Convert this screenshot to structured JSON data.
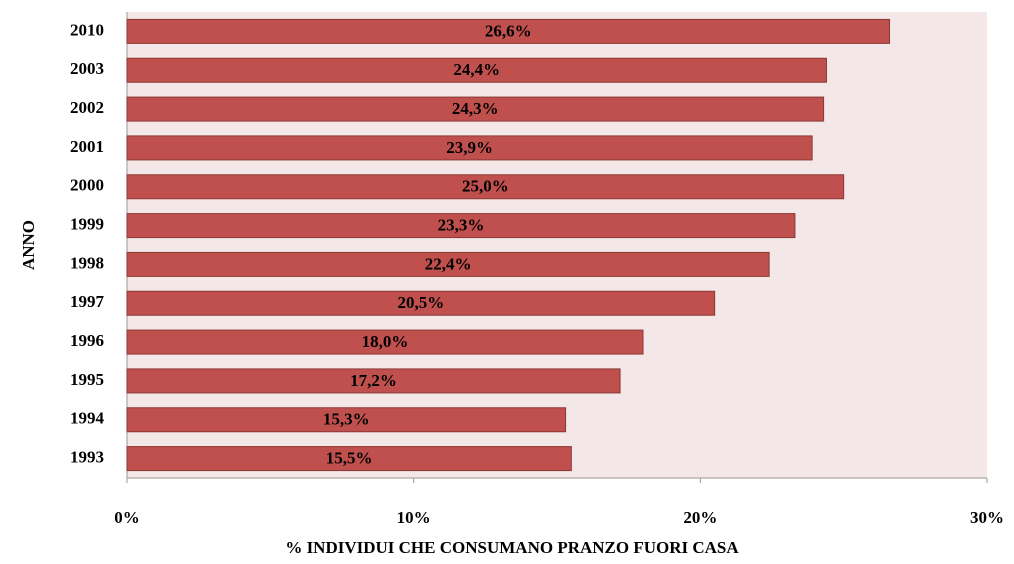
{
  "chart_data": {
    "type": "bar",
    "orientation": "horizontal",
    "categories": [
      "2010",
      "2003",
      "2002",
      "2001",
      "2000",
      "1999",
      "1998",
      "1997",
      "1996",
      "1995",
      "1994",
      "1993"
    ],
    "values": [
      26.6,
      24.4,
      24.3,
      23.9,
      25.0,
      23.3,
      22.4,
      20.5,
      18.0,
      17.2,
      15.3,
      15.5
    ],
    "value_labels": [
      "26,6%",
      "24,4%",
      "24,3%",
      "23,9%",
      "25,0%",
      "23,3%",
      "22,4%",
      "20,5%",
      "18,0%",
      "17,2%",
      "15,3%",
      "15,5%"
    ],
    "color": "#c0504d",
    "xlim": [
      0,
      30
    ],
    "xticks": [
      {
        "value": 0,
        "label": "0%"
      },
      {
        "value": 10,
        "label": "10%"
      },
      {
        "value": 20,
        "label": "20%"
      },
      {
        "value": 30,
        "label": "30%"
      }
    ],
    "xlabel": "% INDIVIDUI CHE CONSUMANO PRANZO FUORI CASA",
    "ylabel": "ANNO"
  }
}
